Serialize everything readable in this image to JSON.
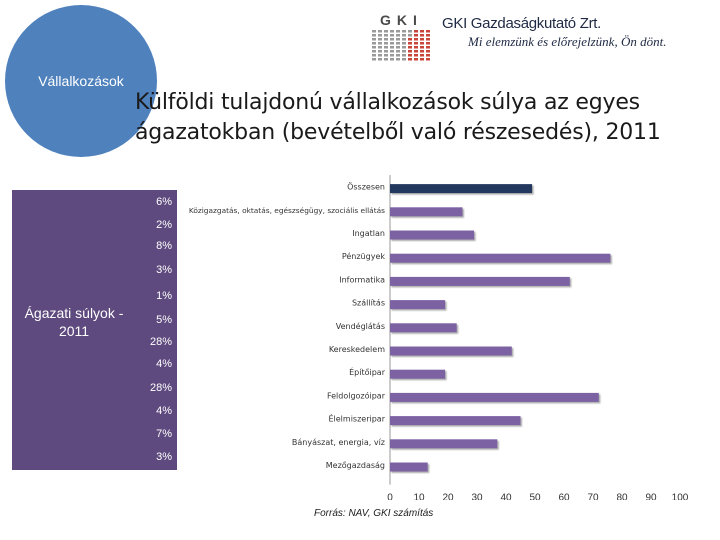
{
  "header": {
    "circle_label": "Vállalkozások",
    "title_line1": "Külföldi tulajdonú vállalkozások súlya az egyes",
    "title_line2": "ágazatokban (bevételből való részesedés), 2011"
  },
  "logo": {
    "mark_text": "GKI",
    "company": "GKI Gazdaságkutató Zrt.",
    "slogan": "Mi elemzünk és előrejelzünk, Ön dönt."
  },
  "sidebar": {
    "label": "Ágazati súlyok - 2011",
    "weights": [
      "6%",
      "2%",
      "8%",
      "3%",
      "1%",
      "5%",
      "28%",
      "4%",
      "28%",
      "4%",
      "7%",
      "3%"
    ]
  },
  "source": "Forrás: NAV, GKI számítás",
  "colors": {
    "panel": "#5e4a7e",
    "circle": "#4f81bd",
    "bar": "#7b62a3",
    "bar_total": "#24395e"
  },
  "chart_data": {
    "type": "bar",
    "orientation": "horizontal",
    "categories": [
      "Összesen",
      "Közigazgatás, oktatás, egészségügy, szociális ellátás",
      "Ingatlan",
      "Pénzügyek",
      "Informatika",
      "Szállítás",
      "Vendéglátás",
      "Kereskedelem",
      "Építőipar",
      "Feldolgozóipar",
      "Élelmiszeripar",
      "Bányászat, energia, víz",
      "Mezőgazdaság"
    ],
    "values": [
      49,
      25,
      29,
      76,
      62,
      19,
      23,
      42,
      19,
      72,
      45,
      37,
      13
    ],
    "highlight": "Összesen",
    "xlim": [
      0,
      100
    ],
    "xticks": [
      0,
      10,
      20,
      30,
      40,
      50,
      60,
      70,
      80,
      90,
      100
    ],
    "title": "",
    "xlabel": "",
    "ylabel": "",
    "grid": false,
    "legend": "none"
  }
}
